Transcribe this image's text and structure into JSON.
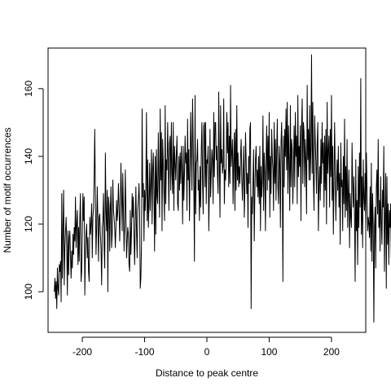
{
  "chart_data": {
    "type": "line",
    "title": "",
    "xlabel": "Distance to peak centre",
    "ylabel": "Number of motif occurrences",
    "xlim": [
      -255,
      255
    ],
    "ylim": [
      88,
      172
    ],
    "x_ticks": [
      -200,
      -100,
      0,
      100,
      200
    ],
    "x_tick_labels": [
      "-200",
      "-100",
      "0",
      "100",
      "200"
    ],
    "y_ticks": [
      100,
      120,
      140,
      160
    ],
    "y_tick_labels": [
      "100",
      "120",
      "140",
      "160"
    ],
    "grid": false,
    "legend": "none",
    "series": [
      {
        "name": "",
        "color": "#000000",
        "x_start": -245,
        "x_step": 1,
        "values": [
          100,
          104,
          98,
          103,
          95,
          107,
          101,
          99,
          108,
          106,
          109,
          97,
          129,
          104,
          119,
          130,
          102,
          113,
          118,
          122,
          113,
          99,
          118,
          105,
          116,
          118,
          110,
          104,
          112,
          107,
          117,
          111,
          119,
          115,
          128,
          113,
          120,
          124,
          108,
          119,
          109,
          122,
          129,
          103,
          106,
          118,
          129,
          121,
          128,
          99,
          112,
          117,
          120,
          110,
          116,
          106,
          103,
          122,
          117,
          120,
          126,
          110,
          122,
          125,
          134,
          148,
          127,
          111,
          119,
          131,
          121,
          109,
          122,
          123,
          117,
          113,
          102,
          119,
          121,
          129,
          113,
          107,
          141,
          124,
          118,
          130,
          100,
          128,
          125,
          112,
          125,
          131,
          113,
          117,
          133,
          124,
          122,
          119,
          113,
          119,
          127,
          121,
          124,
          132,
          125,
          115,
          124,
          138,
          128,
          118,
          135,
          124,
          112,
          120,
          136,
          123,
          110,
          115,
          119,
          117,
          108,
          106,
          124,
          111,
          118,
          129,
          122,
          128,
          116,
          108,
          121,
          131,
          118,
          110,
          124,
          127,
          132,
          124,
          101,
          104,
          114,
          154,
          128,
          132,
          115,
          130,
          124,
          131,
          153,
          121,
          139,
          119,
          125,
          138,
          124,
          132,
          142,
          120,
          136,
          141,
          129,
          112,
          140,
          117,
          142,
          128,
          126,
          147,
          133,
          122,
          154,
          133,
          147,
          118,
          145,
          138,
          129,
          121,
          155,
          126,
          139,
          136,
          150,
          138,
          124,
          144,
          146,
          130,
          150,
          135,
          129,
          150,
          124,
          143,
          138,
          133,
          141,
          146,
          126,
          124,
          140,
          130,
          141,
          132,
          143,
          136,
          120,
          143,
          127,
          135,
          146,
          138,
          141,
          124,
          151,
          133,
          142,
          121,
          136,
          153,
          141,
          130,
          157,
          144,
          131,
          109,
          158,
          123,
          138,
          139,
          145,
          130,
          133,
          121,
          137,
          125,
          142,
          150,
          133,
          123,
          149,
          150,
          131,
          150,
          126,
          139,
          138,
          143,
          118,
          130,
          148,
          128,
          135,
          142,
          139,
          126,
          153,
          134,
          150,
          150,
          139,
          143,
          134,
          129,
          159,
          139,
          122,
          155,
          138,
          142,
          135,
          137,
          157,
          126,
          136,
          133,
          139,
          153,
          141,
          150,
          131,
          146,
          132,
          161,
          137,
          141,
          145,
          126,
          139,
          147,
          124,
          148,
          130,
          155,
          133,
          141,
          131,
          137,
          132,
          140,
          145,
          134,
          127,
          135,
          143,
          122,
          130,
          147,
          139,
          129,
          135,
          119,
          140,
          132,
          148,
          150,
          95,
          128,
          123,
          133,
          142,
          115,
          129,
          139,
          143,
          131,
          136,
          128,
          140,
          126,
          143,
          118,
          137,
          128,
          133,
          152,
          124,
          141,
          135,
          118,
          139,
          149,
          130,
          146,
          133,
          153,
          122,
          140,
          129,
          148,
          140,
          136,
          124,
          150,
          132,
          145,
          127,
          141,
          151,
          131,
          126,
          143,
          138,
          119,
          144,
          150,
          136,
          103,
          146,
          131,
          148,
          140,
          154,
          136,
          156,
          129,
          149,
          138,
          124,
          155,
          131,
          145,
          142,
          126,
          137,
          149,
          131,
          153,
          140,
          146,
          126,
          158,
          134,
          143,
          137,
          149,
          121,
          149,
          157,
          132,
          150,
          147,
          131,
          145,
          138,
          123,
          161,
          139,
          148,
          133,
          155,
          133,
          143,
          170,
          135,
          156,
          133,
          124,
          152,
          144,
          138,
          129,
          144,
          150,
          118,
          131,
          137,
          127,
          145,
          132,
          150,
          138,
          144,
          125,
          146,
          130,
          148,
          120,
          156,
          135,
          142,
          146,
          125,
          148,
          134,
          158,
          127,
          143,
          117,
          132,
          150,
          136,
          121,
          132,
          139,
          130,
          143,
          125,
          135,
          114,
          144,
          131,
          133,
          118,
          140,
          126,
          151,
          122,
          137,
          124,
          145,
          119,
          129,
          136,
          113,
          129,
          122,
          119,
          144,
          132,
          125,
          134,
          122,
          103,
          139,
          118,
          127,
          108,
          137,
          119,
          141,
          125,
          163,
          117,
          134,
          113,
          139,
          128,
          124,
          135,
          119,
          141,
          131,
          118,
          122,
          120,
          116,
          131,
          112,
          138,
          109,
          129,
          120,
          91,
          119,
          125,
          107,
          131,
          136,
          123,
          145,
          119,
          127,
          112,
          134,
          121,
          114,
          130,
          125,
          143,
          106,
          122,
          135,
          101,
          134,
          114,
          126,
          108,
          124,
          119,
          126,
          110,
          133,
          132,
          126,
          112,
          122,
          107,
          126,
          117,
          140,
          116,
          131,
          102,
          124,
          111,
          119,
          128,
          108,
          133,
          107,
          118,
          103,
          125,
          114,
          98,
          121,
          113,
          102,
          128,
          110,
          123,
          99,
          117,
          105,
          124,
          116,
          101,
          131,
          109,
          119,
          106,
          118,
          114,
          99,
          121,
          107,
          118,
          111,
          123,
          102,
          116,
          97,
          118,
          109,
          117,
          108,
          113,
          101,
          119,
          106,
          112,
          100,
          116,
          107,
          104,
          111,
          98,
          114,
          92,
          110,
          103,
          113,
          100,
          106
        ]
      }
    ]
  }
}
